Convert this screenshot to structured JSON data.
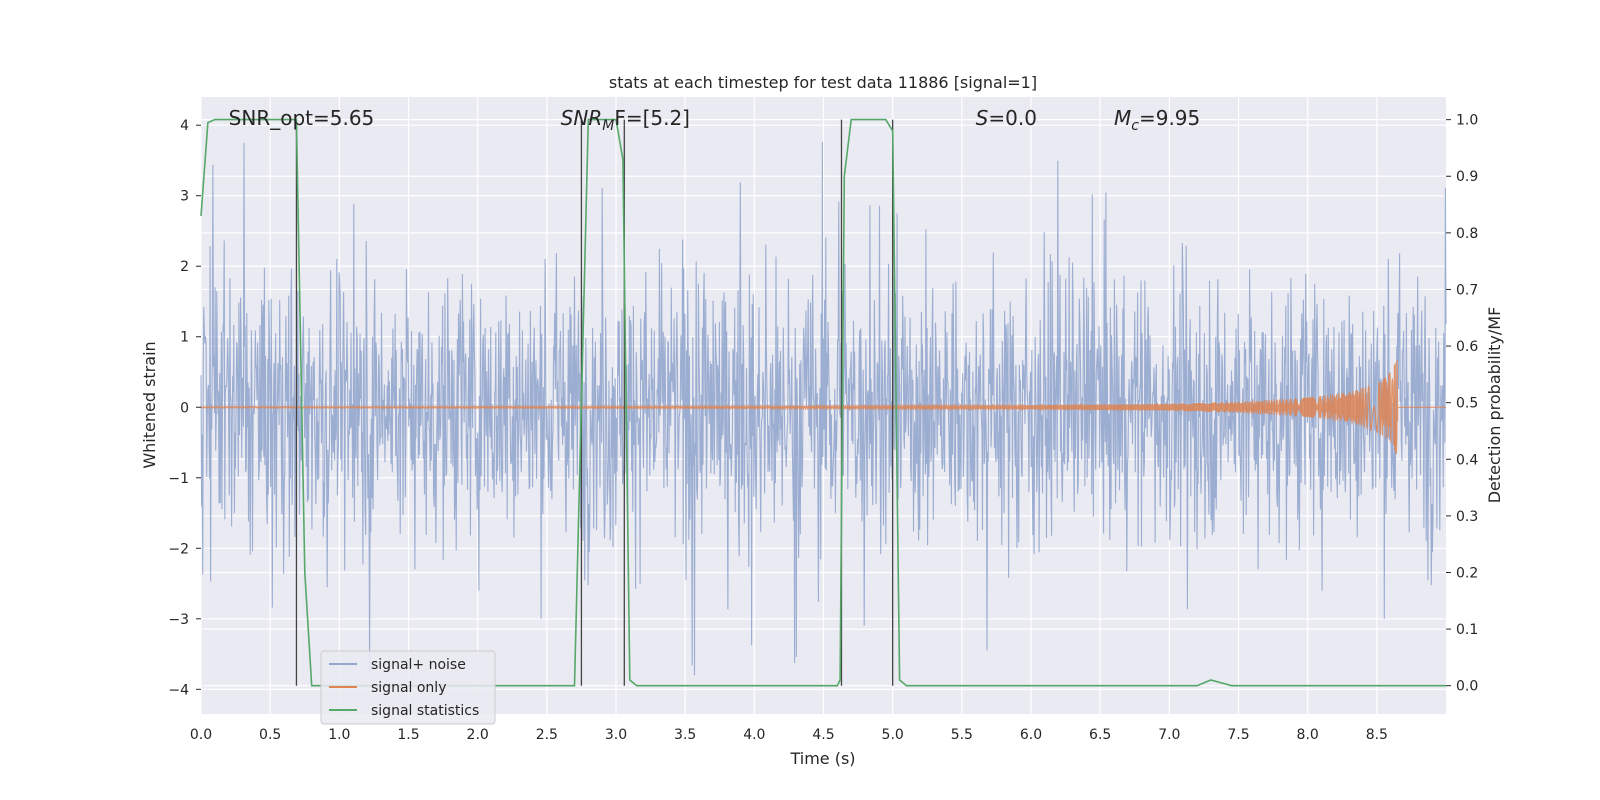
{
  "colors": {
    "background": "#eaeaf2",
    "grid": "#ffffff",
    "noise": "#92a6cd",
    "signal": "#dd8452",
    "stats": "#55a868",
    "marker": "#444444",
    "text": "#262626"
  },
  "chart_data": {
    "type": "line",
    "title": "stats at each timestep for test data 11886 [signal=1]",
    "xlabel": "Time (s)",
    "ylabel": "Whitened strain",
    "ylabel_right": "Detection probability/MF",
    "xlim": [
      0.0,
      9.0
    ],
    "ylim": [
      -4.35,
      4.4
    ],
    "ylim_right": [
      -0.05,
      1.04
    ],
    "grid": true,
    "legend_position": "lower-left",
    "x_ticks": [
      "0.0",
      "0.5",
      "1.0",
      "1.5",
      "2.0",
      "2.5",
      "3.0",
      "3.5",
      "4.0",
      "4.5",
      "5.0",
      "5.5",
      "6.0",
      "6.5",
      "7.0",
      "7.5",
      "8.0",
      "8.5"
    ],
    "y_ticks": [
      "4",
      "3",
      "2",
      "1",
      "0",
      "−1",
      "−2",
      "−3",
      "−4"
    ],
    "y_ticks_right": [
      "1.0",
      "0.9",
      "0.8",
      "0.7",
      "0.6",
      "0.5",
      "0.4",
      "0.3",
      "0.2",
      "0.1",
      "0.0"
    ],
    "annotations": [
      {
        "text": "SNR_opt=5.65",
        "x": 0.2,
        "y": 4.1
      },
      {
        "math": true,
        "base": "SNR",
        "sub": "M",
        "rest": "F=[5.2]",
        "x": 2.6,
        "y": 4.1
      },
      {
        "math": true,
        "base": "S",
        "sub": "",
        "rest": "=0.0",
        "x": 5.6,
        "y": 4.1
      },
      {
        "math": true,
        "base": "M",
        "sub": "c",
        "rest": "=9.95",
        "x": 6.6,
        "y": 4.1
      }
    ],
    "series": [
      {
        "name": "signal+ noise",
        "color": "#92a6cd",
        "kind": "noise",
        "amplitude_typical": 1.6,
        "amplitude_peak": 4.0,
        "range": [
          0.0,
          9.0
        ]
      },
      {
        "name": "signal only",
        "color": "#dd8452",
        "kind": "chirp",
        "envelope": {
          "t": [
            0.0,
            4.5,
            6.0,
            7.0,
            7.5,
            8.0,
            8.3,
            8.5,
            8.6,
            8.65
          ],
          "amp": [
            0.01,
            0.02,
            0.03,
            0.05,
            0.08,
            0.14,
            0.22,
            0.35,
            0.5,
            0.7
          ]
        },
        "end": 8.65
      },
      {
        "name": "signal statistics",
        "color": "#55a868",
        "axis": "right",
        "t": [
          0.0,
          0.05,
          0.1,
          0.65,
          0.69,
          0.75,
          0.8,
          2.7,
          2.75,
          2.8,
          2.85,
          3.0,
          3.05,
          3.1,
          3.15,
          3.2,
          4.6,
          4.62,
          4.65,
          4.7,
          4.95,
          5.0,
          5.05,
          5.1,
          7.2,
          7.3,
          7.45,
          9.0
        ],
        "p": [
          0.83,
          0.995,
          1.0,
          1.0,
          1.0,
          0.2,
          0.0,
          0.0,
          0.5,
          1.0,
          1.0,
          1.0,
          0.93,
          0.01,
          0.0,
          0.0,
          0.0,
          0.01,
          0.9,
          1.0,
          1.0,
          0.98,
          0.01,
          0.0,
          0.0,
          0.01,
          0.0,
          0.0
        ]
      }
    ],
    "markers": [
      0.69,
      2.75,
      3.06,
      4.63,
      5.0
    ]
  }
}
